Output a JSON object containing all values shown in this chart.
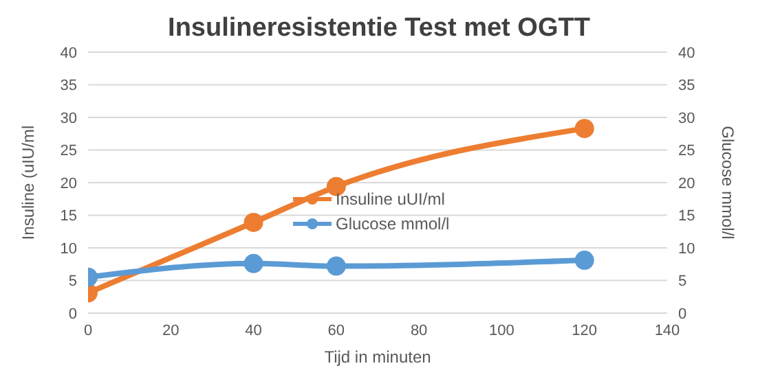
{
  "chart_data": {
    "type": "line",
    "title": "Insulineresistentie Test met OGTT",
    "xlabel": "Tijd in minuten",
    "ylabel": "Insuline (uIU/ml",
    "y2label": "Glucose mmol/l",
    "x": [
      0,
      40,
      60,
      120
    ],
    "series": [
      {
        "name": "Insuline uUI/ml",
        "color": "#ed7d31",
        "values": [
          3.1,
          13.9,
          19.4,
          28.3
        ]
      },
      {
        "name": "Glucose mmol/l",
        "color": "#5b9bd5",
        "values": [
          5.5,
          7.6,
          7.2,
          8.1
        ],
        "axis": "y2"
      }
    ],
    "xlim": [
      0,
      140
    ],
    "xticks": [
      0,
      20,
      40,
      60,
      80,
      100,
      120,
      140
    ],
    "ylim": [
      0,
      40
    ],
    "yticks": [
      0,
      5,
      10,
      15,
      20,
      25,
      30,
      35,
      40
    ],
    "y2lim": [
      0,
      40
    ],
    "y2ticks": [
      0,
      5,
      10,
      15,
      20,
      25,
      30,
      35,
      40
    ],
    "grid": "y",
    "legend": "bottom",
    "marker": "circle",
    "line_style": "solid"
  }
}
